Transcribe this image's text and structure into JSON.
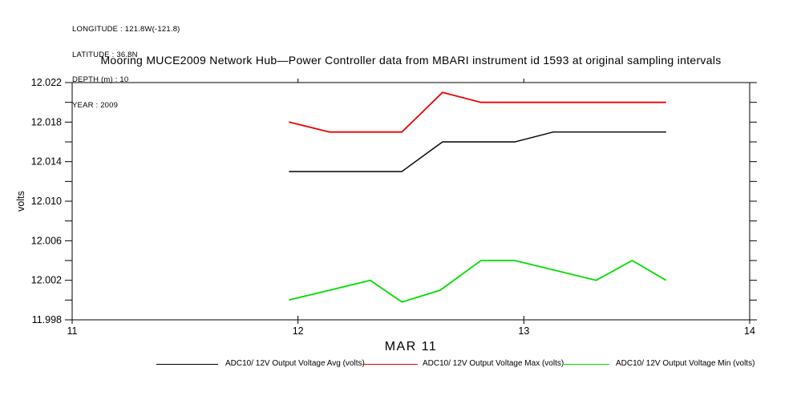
{
  "meta": {
    "longitude": "LONGITUDE : 121.8W(-121.8)",
    "latitude": "LATITUDE : 36.8N",
    "depth": "DEPTH (m) : 10",
    "year": "YEAR : 2009"
  },
  "chart_data": {
    "type": "line",
    "title": "Mooring MUCE2009 Network Hub—Power Controller data from MBARI instrument id 1593 at original sampling intervals",
    "xlabel": "MAR 11",
    "ylabel": "volts",
    "grid": false,
    "legend_position": "bottom",
    "x_axis": {
      "min": 11,
      "max": 14,
      "major_ticks": [
        11,
        12,
        13,
        14
      ],
      "tick_labels": [
        "11",
        "12",
        "13",
        "14"
      ],
      "top_ticks": [
        12,
        13
      ]
    },
    "y_axis": {
      "min": 11.998,
      "max": 12.022,
      "minor_tick_step": 0.002,
      "labeled_ticks": [
        12.022,
        12.018,
        12.014,
        12.01,
        12.006,
        12.002,
        11.998
      ],
      "tick_labels": [
        "12.022",
        "12.018",
        "12.014",
        "12.010",
        "12.006",
        "12.002",
        "11.998"
      ]
    },
    "series": [
      {
        "name": "ADC10/ 12V Output Voltage Avg (volts)",
        "color": "#000000",
        "points": [
          [
            11.96,
            12.013
          ],
          [
            12.46,
            12.013
          ],
          [
            12.64,
            12.016
          ],
          [
            12.96,
            12.016
          ],
          [
            13.13,
            12.017
          ],
          [
            13.63,
            12.017
          ]
        ]
      },
      {
        "name": "ADC10/ 12V Output Voltage Max (volts)",
        "color": "#ee0000",
        "points": [
          [
            11.96,
            12.018
          ],
          [
            12.14,
            12.017
          ],
          [
            12.46,
            12.017
          ],
          [
            12.64,
            12.021
          ],
          [
            12.81,
            12.02
          ],
          [
            13.63,
            12.02
          ]
        ]
      },
      {
        "name": "ADC10/ 12V Output Voltage Min (volts)",
        "color": "#00dd00",
        "points": [
          [
            11.96,
            12.0
          ],
          [
            12.32,
            12.002
          ],
          [
            12.46,
            11.9998
          ],
          [
            12.63,
            12.001
          ],
          [
            12.81,
            12.004
          ],
          [
            12.96,
            12.004
          ],
          [
            13.32,
            12.002
          ],
          [
            13.48,
            12.004
          ],
          [
            13.63,
            12.002
          ]
        ]
      }
    ]
  }
}
